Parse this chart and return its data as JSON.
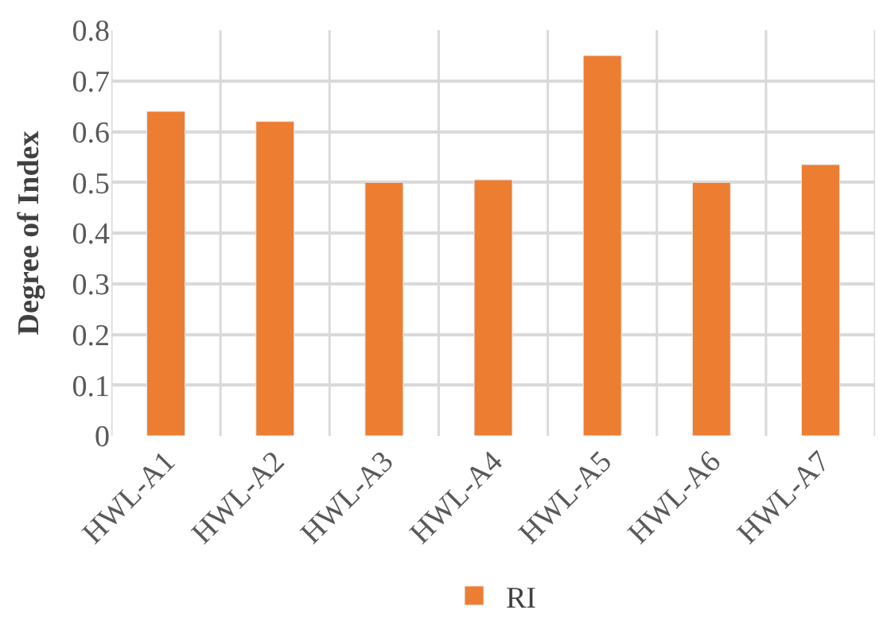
{
  "chart_data": {
    "type": "bar",
    "ylabel": "Degree of Index",
    "categories": [
      "HWL-A1",
      "HWL-A2",
      "HWL-A3",
      "HWL-A4",
      "HWL-A5",
      "HWL-A6",
      "HWL-A7"
    ],
    "series": [
      {
        "name": "RI",
        "color": "#ed7d31",
        "values": [
          0.64,
          0.62,
          0.5,
          0.505,
          0.75,
          0.5,
          0.535
        ]
      }
    ],
    "ylim": [
      0,
      0.8
    ],
    "yticks": [
      0,
      0.1,
      0.2,
      0.3,
      0.4,
      0.5,
      0.6,
      0.7,
      0.8
    ],
    "grid": true,
    "legend": "bottom"
  }
}
